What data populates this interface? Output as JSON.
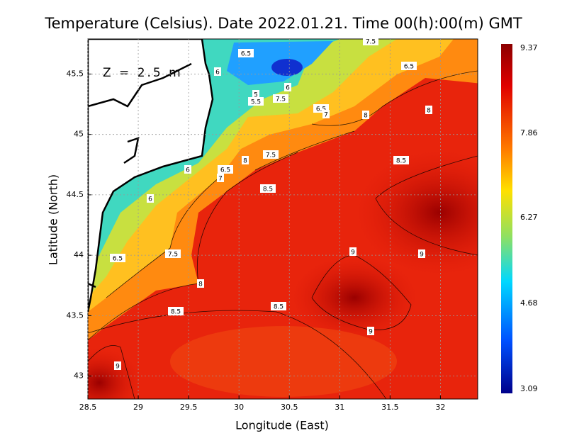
{
  "map": {
    "title": "Temperature (Celsius). Date 2022.01.21. Time 00(h):00(m)  GMT",
    "depth_label": "Z = 2.5 m",
    "x_axis_label": "Longitude (East)",
    "y_axis_label": "Latitude (North)",
    "xlim": [
      28.5,
      32.37
    ],
    "ylim": [
      42.81,
      45.79
    ],
    "xticks": [
      28.5,
      29,
      29.5,
      30,
      30.5,
      31,
      31.5,
      32
    ],
    "yticks": [
      43,
      43.5,
      44,
      44.5,
      45,
      45.5
    ],
    "colorbar": {
      "labels": [
        "9.37",
        "7.86",
        "6.27",
        "4.68",
        "3.09"
      ]
    },
    "contour_labels": [
      "7.5",
      "6.5",
      "6.5",
      "6",
      "6",
      "5",
      "5.5",
      "7.5",
      "6.5",
      "7",
      "8",
      "8",
      "7.5",
      "8",
      "8.5",
      "6",
      "6.5",
      "7",
      "8.5",
      "6",
      "9",
      "9",
      "7.5",
      "6.5",
      "8",
      "8.5",
      "8.5",
      "9",
      "9"
    ]
  }
}
